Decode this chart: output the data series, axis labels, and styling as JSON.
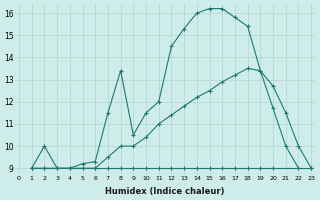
{
  "xlabel": "Humidex (Indice chaleur)",
  "bg_color": "#ceecea",
  "grid_color": "#b8d8d4",
  "line_color": "#1e7870",
  "curve1_x": [
    1,
    2,
    3,
    4,
    5,
    6,
    7,
    8,
    9,
    10,
    11,
    12,
    13,
    14,
    15,
    16,
    17,
    18,
    19,
    20,
    21,
    22
  ],
  "curve1_y": [
    9,
    10,
    9,
    9,
    9.2,
    9.3,
    11.5,
    13.4,
    10.5,
    11.5,
    12.0,
    14.5,
    15.3,
    16.0,
    16.2,
    16.2,
    15.8,
    15.4,
    13.4,
    11.7,
    10.0,
    9.0
  ],
  "curve2_x": [
    1,
    2,
    3,
    4,
    5,
    6,
    7,
    8,
    9,
    10,
    11,
    12,
    13,
    14,
    15,
    16,
    17,
    18,
    19,
    20,
    23
  ],
  "curve2_y": [
    9,
    9,
    9,
    9,
    9,
    9,
    9,
    9,
    9,
    9,
    9,
    9,
    9,
    9,
    9,
    9,
    9,
    9,
    9,
    9,
    9
  ],
  "curve3_x": [
    1,
    2,
    6,
    7,
    8,
    9,
    10,
    11,
    12,
    13,
    14,
    15,
    16,
    17,
    18,
    19,
    20,
    21,
    22,
    23
  ],
  "curve3_y": [
    9,
    9,
    9,
    9.5,
    10.0,
    10.0,
    10.4,
    11.0,
    11.4,
    11.8,
    12.2,
    12.5,
    12.9,
    13.2,
    13.5,
    13.4,
    12.7,
    11.5,
    10.0,
    9.0
  ],
  "xlim": [
    -0.3,
    23.3
  ],
  "ylim": [
    8.7,
    16.4
  ],
  "xticks": [
    0,
    1,
    2,
    3,
    4,
    5,
    6,
    7,
    8,
    9,
    10,
    11,
    12,
    13,
    14,
    15,
    16,
    17,
    18,
    19,
    20,
    21,
    22,
    23
  ],
  "yticks": [
    9,
    10,
    11,
    12,
    13,
    14,
    15,
    16
  ],
  "xtick_labels": [
    "0",
    "1",
    "2",
    "3",
    "4",
    "5",
    "6",
    "7",
    "8",
    "9",
    "10",
    "11",
    "12",
    "13",
    "14",
    "15",
    "16",
    "17",
    "18",
    "19",
    "20",
    "21",
    "22",
    "23"
  ],
  "ytick_labels": [
    "9",
    "10",
    "11",
    "12",
    "13",
    "14",
    "15",
    "16"
  ]
}
